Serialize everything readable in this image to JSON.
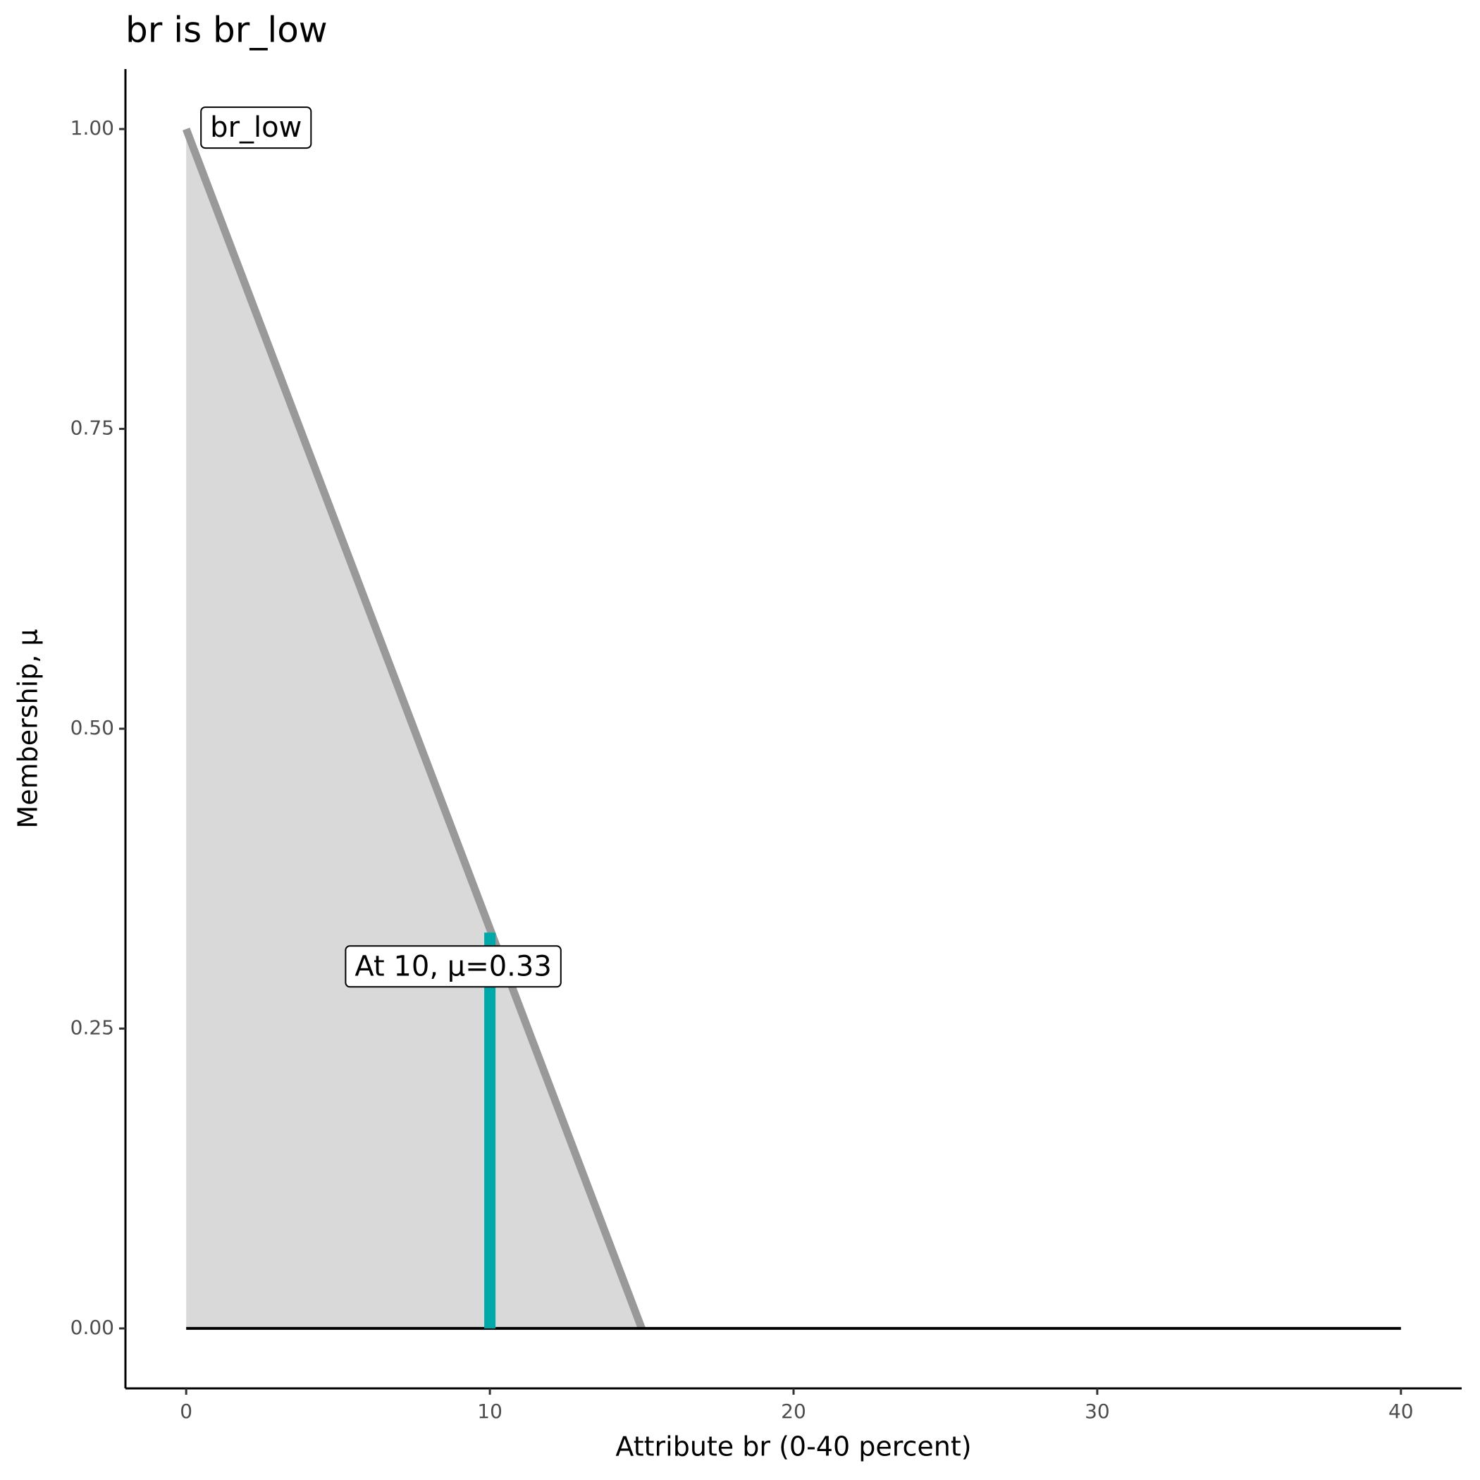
{
  "chart_data": {
    "type": "line",
    "title": "br is br_low",
    "x_label": "Attribute br (0-40 percent)",
    "y_label": "Membership, μ",
    "series": [
      {
        "name": "br_low",
        "color": "#999999",
        "fill_color": "#d9d9d9",
        "x": [
          0,
          15
        ],
        "values": [
          1,
          0
        ]
      },
      {
        "color": "#000000",
        "x": [
          0,
          40
        ],
        "values": [
          0,
          0
        ]
      }
    ],
    "marker": {
      "x": 10,
      "value": 0.33,
      "color": "#00a9a9",
      "label": "At 10, μ=0.33"
    },
    "xlim": [
      -2,
      42
    ],
    "xticks": [
      0,
      10,
      20,
      30,
      40
    ],
    "ylim": [
      -0.05,
      1.05
    ],
    "yticks": [
      {
        "value": 0,
        "label": "0.00"
      },
      {
        "value": 0.25,
        "label": "0.25"
      },
      {
        "value": 0.5,
        "label": "0.50"
      },
      {
        "value": 0.75,
        "label": "0.75"
      },
      {
        "value": 1,
        "label": "1.00"
      }
    ],
    "grid": false
  }
}
